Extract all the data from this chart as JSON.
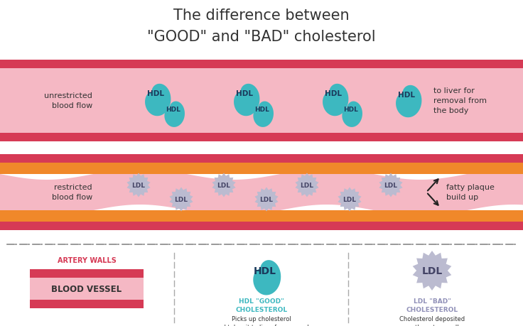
{
  "title_line1": "The difference between",
  "title_line2": "\"GOOD\" and \"BAD\" cholesterol",
  "bg_color": "#ffffff",
  "artery_wall_color": "#d63a55",
  "vessel_fill": "#f5b8c4",
  "orange_plaque_color": "#f0882a",
  "hdl_color": "#3db8c0",
  "ldl_color": "#bbbbd0",
  "text_dark": "#333333",
  "text_pink": "#d63a55",
  "text_teal": "#3db8c0",
  "text_lavender": "#9090b8",
  "unrestricted_label": "unrestricted\nblood flow",
  "restricted_label": "restricted\nblood flow",
  "to_liver_label": "to liver for\nremoval from\nthe body",
  "fatty_plaque_label": "fatty plaque\nbuild up",
  "legend_artery": "ARTERY WALLS",
  "legend_vessel": "BLOOD VESSEL",
  "legend_hdl_title1": "HDL \"GOOD\"",
  "legend_hdl_title2": "CHOLESTEROL",
  "legend_hdl_desc": "Picks up cholesterol\nand takes it to liver for removal",
  "legend_ldl_title1": "LDL \"BAD\"",
  "legend_ldl_title2": "CHOLESTEROL",
  "legend_ldl_desc": "Cholesterol deposited\non the artery wall"
}
